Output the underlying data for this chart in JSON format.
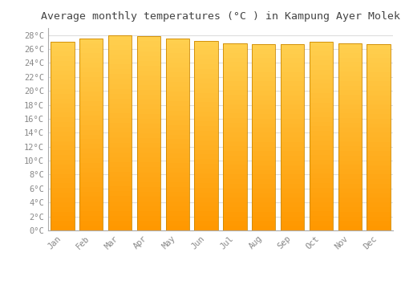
{
  "title": "Average monthly temperatures (°C ) in Kampung Ayer Molek",
  "months": [
    "Jan",
    "Feb",
    "Mar",
    "Apr",
    "May",
    "Jun",
    "Jul",
    "Aug",
    "Sep",
    "Oct",
    "Nov",
    "Dec"
  ],
  "temperatures": [
    27.0,
    27.5,
    28.0,
    27.8,
    27.5,
    27.2,
    26.8,
    26.7,
    26.7,
    27.1,
    26.8,
    26.7
  ],
  "bar_color_top": "#FFD050",
  "bar_color_bottom": "#FF9800",
  "bar_edge_color": "#CC8800",
  "background_color": "#FFFFFF",
  "grid_color": "#DDDDDD",
  "ylim": [
    0,
    29
  ],
  "ytick_step": 2,
  "title_fontsize": 9.5,
  "tick_fontsize": 7.5,
  "font_family": "monospace"
}
